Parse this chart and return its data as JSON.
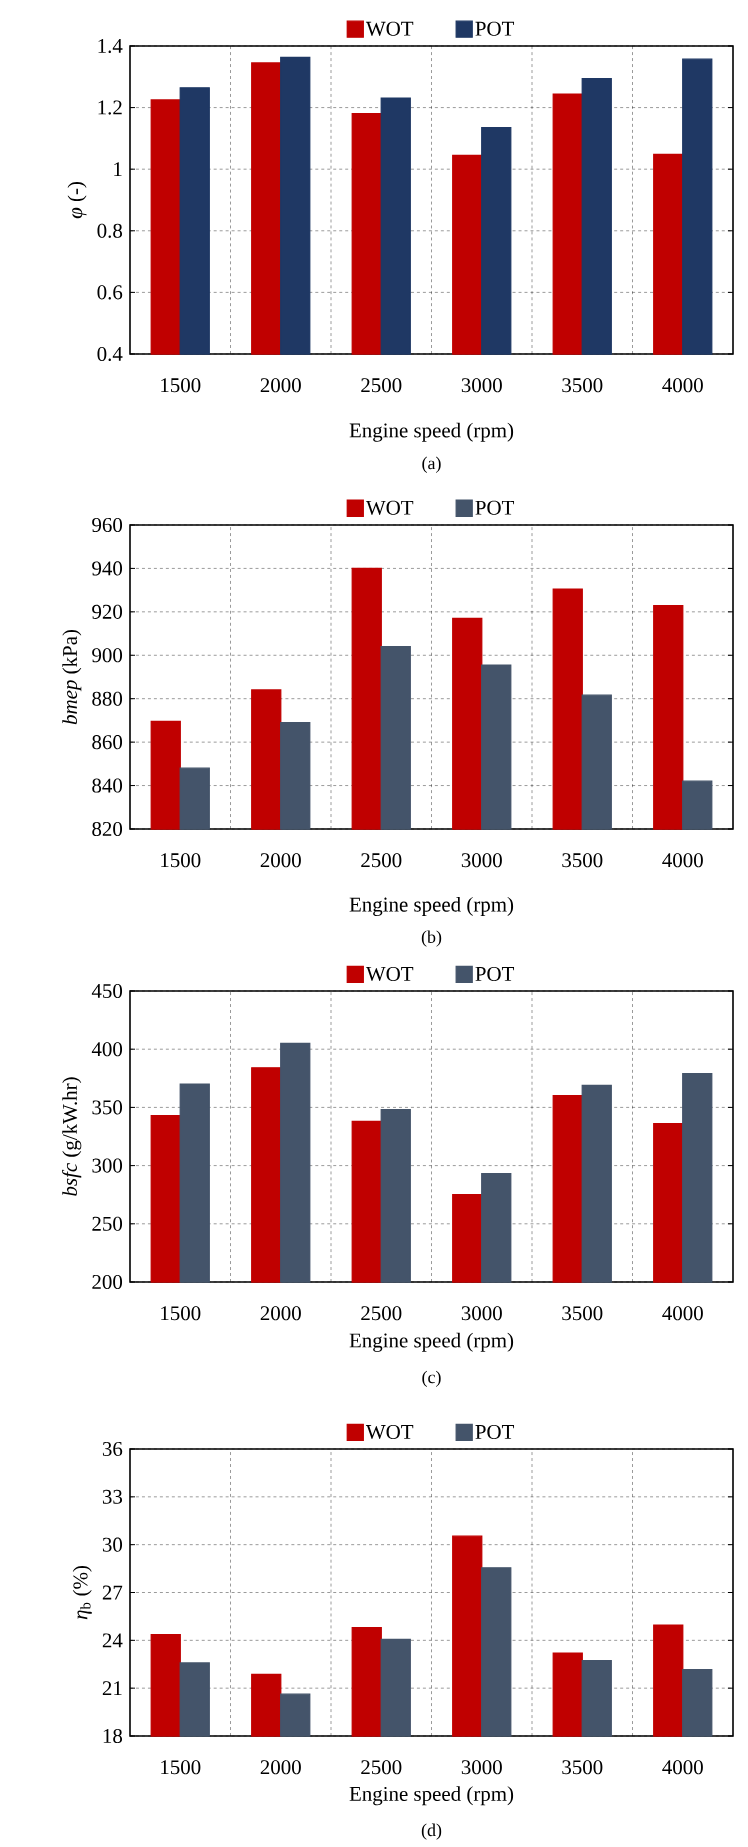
{
  "chart_data": [
    {
      "type": "bar",
      "categories": [
        "1500",
        "2000",
        "2500",
        "3000",
        "3500",
        "4000"
      ],
      "xlabel": "Engine speed (rpm)",
      "ylabel": "*φ* (-)",
      "ylim": [
        0.4,
        1.4
      ],
      "yticks": [
        0.4,
        0.6,
        0.8,
        1,
        1.2,
        1.4
      ],
      "grid": true,
      "line_style": "dashed",
      "legend": "top",
      "annotations": [
        "(a)"
      ],
      "series": [
        {
          "name": "WOT",
          "color": "#c00000",
          "values": [
            1.225,
            1.345,
            1.18,
            1.045,
            1.244,
            1.048
          ]
        },
        {
          "name": "POT",
          "color": "#1f3864",
          "values": [
            1.264,
            1.363,
            1.231,
            1.135,
            1.294,
            1.357
          ]
        }
      ]
    },
    {
      "type": "bar",
      "categories": [
        "1500",
        "2000",
        "2500",
        "3000",
        "3500",
        "4000"
      ],
      "xlabel": "Engine speed (rpm)",
      "ylabel": "*bmep* (kPa)",
      "ylim": [
        820,
        960
      ],
      "yticks": [
        820,
        840,
        860,
        880,
        900,
        920,
        940,
        960
      ],
      "grid": true,
      "line_style": "dashed",
      "legend": "top",
      "annotations": [
        "(b)"
      ],
      "series": [
        {
          "name": "WOT",
          "color": "#c00000",
          "values": [
            869.6,
            884,
            940,
            917,
            930.5,
            922.8
          ]
        },
        {
          "name": "POT",
          "color": "#44546a",
          "values": [
            848,
            869,
            904,
            895.5,
            881.6,
            842
          ]
        }
      ]
    },
    {
      "type": "bar",
      "categories": [
        "1500",
        "2000",
        "2500",
        "3000",
        "3500",
        "4000"
      ],
      "xlabel": "Engine speed (rpm)",
      "ylabel": "*bsfc* (g/kW.hr)",
      "ylim": [
        200,
        450
      ],
      "yticks": [
        200,
        250,
        300,
        350,
        400,
        450
      ],
      "grid": true,
      "line_style": "dashed",
      "legend": "top",
      "annotations": [
        "(c)"
      ],
      "series": [
        {
          "name": "WOT",
          "color": "#c00000",
          "values": [
            343,
            384,
            338,
            275,
            360,
            336
          ]
        },
        {
          "name": "POT",
          "color": "#44546a",
          "values": [
            370,
            405,
            348,
            293,
            369,
            379
          ]
        }
      ]
    },
    {
      "type": "bar",
      "categories": [
        "1500",
        "2000",
        "2500",
        "3000",
        "3500",
        "4000"
      ],
      "xlabel": "Engine speed (rpm)",
      "ylabel": "*η*$_{b}$ (%)",
      "ylim": [
        18,
        36
      ],
      "yticks": [
        18,
        21,
        24,
        27,
        30,
        33,
        36
      ],
      "grid": true,
      "line_style": "dashed",
      "legend": "top",
      "annotations": [
        "(d)"
      ],
      "series": [
        {
          "name": "WOT",
          "color": "#c00000",
          "values": [
            24.36,
            21.86,
            24.8,
            30.53,
            23.2,
            24.96
          ]
        },
        {
          "name": "POT",
          "color": "#44546a",
          "values": [
            22.58,
            20.62,
            24.06,
            28.55,
            22.73,
            22.16
          ]
        }
      ]
    }
  ]
}
